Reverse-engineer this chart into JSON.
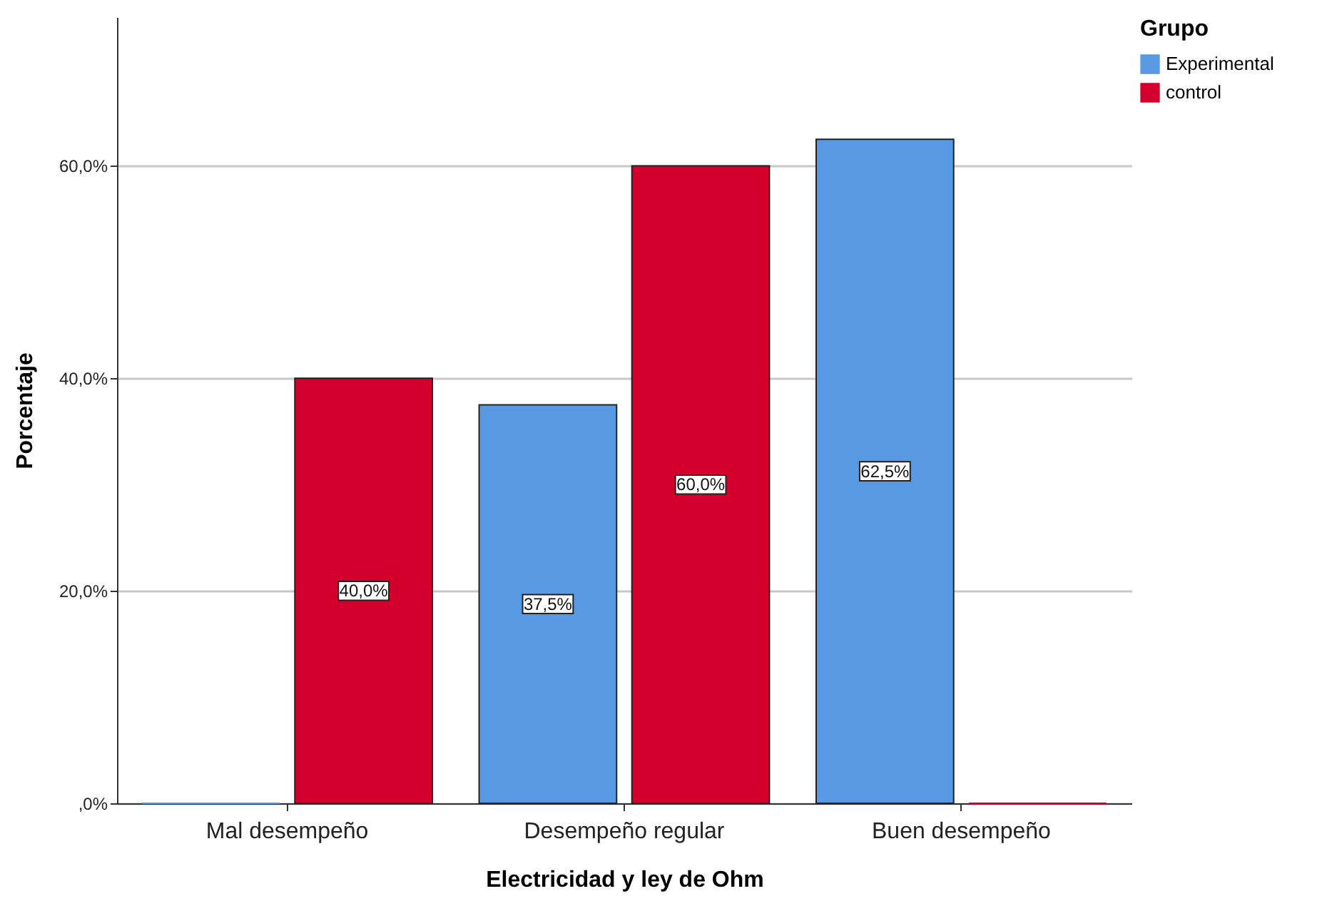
{
  "chart_data": {
    "type": "bar",
    "xlabel": "Electricidad y ley de Ohm",
    "ylabel": "Porcentaje",
    "legend_title": "Grupo",
    "legend": "top right",
    "grid": "y",
    "categories": [
      "Mal desempeño",
      "Desempeño regular",
      "Buen desempeño"
    ],
    "ylim": [
      0,
      74
    ],
    "yticks": [
      {
        "value": 0,
        "label": ",0%"
      },
      {
        "value": 20,
        "label": "20,0%"
      },
      {
        "value": 40,
        "label": "40,0%"
      },
      {
        "value": 60,
        "label": "60,0%"
      }
    ],
    "series": [
      {
        "name": "Experimental",
        "color": "#5799e3",
        "values": [
          0,
          37.5,
          62.5
        ],
        "value_labels": [
          null,
          "37,5%",
          "62,5%"
        ]
      },
      {
        "name": "control",
        "color": "#d3002d",
        "values": [
          40,
          60,
          0
        ],
        "value_labels": [
          "40,0%",
          "60,0%",
          null
        ]
      }
    ]
  }
}
